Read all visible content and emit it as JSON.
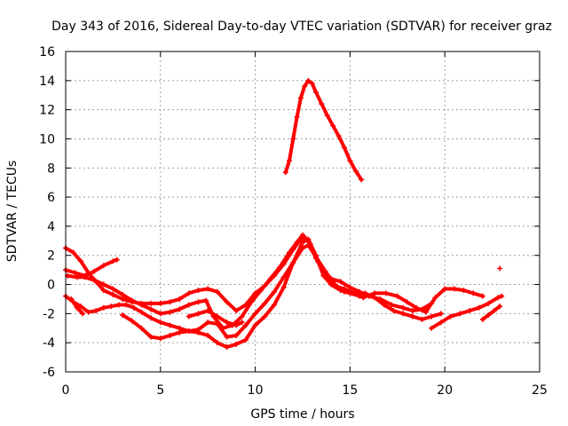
{
  "chart_data": {
    "type": "scatter",
    "title": "Day 343 of 2016, Sidereal Day-to-day VTEC variation (SDTVAR) for receiver graz",
    "xlabel": "GPS time / hours",
    "ylabel": "SDTVAR / TECUs",
    "xlim": [
      0,
      25
    ],
    "ylim": [
      -6,
      16
    ],
    "xticks": [
      0,
      5,
      10,
      15,
      20,
      25
    ],
    "yticks": [
      -6,
      -4,
      -2,
      0,
      2,
      4,
      6,
      8,
      10,
      12,
      14,
      16
    ],
    "grid": true,
    "marker_color": "#ff0000",
    "series": [
      {
        "name": "arc-peak-high",
        "points": [
          [
            11.6,
            7.7
          ],
          [
            11.8,
            8.5
          ],
          [
            12.0,
            10.0
          ],
          [
            12.2,
            11.5
          ],
          [
            12.4,
            12.8
          ],
          [
            12.6,
            13.6
          ],
          [
            12.8,
            14.0
          ],
          [
            13.0,
            13.8
          ],
          [
            13.2,
            13.2
          ],
          [
            13.5,
            12.4
          ],
          [
            13.8,
            11.6
          ],
          [
            14.1,
            10.9
          ],
          [
            14.4,
            10.2
          ],
          [
            14.7,
            9.4
          ],
          [
            15.0,
            8.5
          ],
          [
            15.3,
            7.8
          ],
          [
            15.6,
            7.2
          ]
        ]
      },
      {
        "name": "arc-a",
        "points": [
          [
            0.0,
            2.5
          ],
          [
            0.4,
            2.2
          ],
          [
            0.8,
            1.6
          ],
          [
            1.2,
            0.8
          ],
          [
            1.6,
            0.2
          ],
          [
            2.0,
            -0.4
          ],
          [
            2.5,
            -0.7
          ],
          [
            3.0,
            -1.0
          ],
          [
            3.5,
            -1.2
          ],
          [
            4.0,
            -1.3
          ],
          [
            4.5,
            -1.3
          ],
          [
            5.0,
            -1.3
          ],
          [
            5.5,
            -1.2
          ],
          [
            6.0,
            -1.0
          ],
          [
            6.5,
            -0.6
          ],
          [
            7.0,
            -0.4
          ],
          [
            7.5,
            -0.3
          ],
          [
            8.0,
            -0.5
          ],
          [
            8.5,
            -1.2
          ],
          [
            9.0,
            -1.8
          ],
          [
            9.5,
            -1.4
          ],
          [
            10.0,
            -0.6
          ],
          [
            10.5,
            -0.1
          ],
          [
            11.0,
            0.6
          ],
          [
            11.5,
            1.4
          ],
          [
            12.0,
            2.4
          ],
          [
            12.4,
            3.1
          ],
          [
            12.6,
            3.2
          ],
          [
            12.9,
            2.8
          ],
          [
            13.3,
            1.6
          ],
          [
            13.7,
            0.5
          ],
          [
            14.2,
            -0.1
          ],
          [
            14.7,
            -0.3
          ],
          [
            15.2,
            -0.6
          ],
          [
            15.7,
            -0.9
          ],
          [
            16.3,
            -0.6
          ],
          [
            16.9,
            -0.6
          ],
          [
            17.5,
            -0.8
          ],
          [
            18.0,
            -1.2
          ],
          [
            18.5,
            -1.6
          ],
          [
            19.0,
            -1.9
          ],
          [
            19.5,
            -0.9
          ],
          [
            20.0,
            -0.3
          ],
          [
            20.5,
            -0.3
          ],
          [
            21.0,
            -0.4
          ],
          [
            21.5,
            -0.6
          ],
          [
            22.0,
            -0.8
          ]
        ]
      },
      {
        "name": "arc-b",
        "points": [
          [
            0.1,
            0.6
          ],
          [
            0.6,
            0.5
          ],
          [
            1.0,
            0.5
          ],
          [
            1.5,
            0.3
          ],
          [
            2.0,
            0.0
          ],
          [
            2.5,
            -0.3
          ],
          [
            3.0,
            -0.7
          ],
          [
            3.5,
            -1.1
          ],
          [
            4.0,
            -1.4
          ],
          [
            4.5,
            -1.7
          ],
          [
            5.0,
            -2.0
          ],
          [
            5.5,
            -1.9
          ],
          [
            6.0,
            -1.7
          ],
          [
            6.5,
            -1.4
          ],
          [
            7.0,
            -1.2
          ],
          [
            7.4,
            -1.1
          ],
          [
            7.8,
            -2.2
          ],
          [
            8.3,
            -3.0
          ],
          [
            8.8,
            -2.8
          ],
          [
            9.3,
            -2.2
          ],
          [
            9.8,
            -1.2
          ],
          [
            10.3,
            -0.4
          ],
          [
            10.8,
            0.4
          ],
          [
            11.3,
            1.2
          ],
          [
            11.8,
            2.2
          ],
          [
            12.2,
            2.9
          ],
          [
            12.5,
            3.4
          ],
          [
            12.8,
            3.0
          ],
          [
            13.2,
            1.8
          ],
          [
            13.6,
            0.8
          ],
          [
            14.0,
            0.4
          ],
          [
            14.5,
            0.2
          ],
          [
            15.0,
            -0.2
          ],
          [
            15.5,
            -0.5
          ],
          [
            16.0,
            -0.8
          ],
          [
            16.6,
            -1.0
          ],
          [
            17.2,
            -1.4
          ],
          [
            17.8,
            -1.6
          ],
          [
            18.3,
            -1.8
          ],
          [
            18.8,
            -1.7
          ],
          [
            19.3,
            -1.3
          ]
        ]
      },
      {
        "name": "arc-c",
        "points": [
          [
            0.0,
            -0.8
          ],
          [
            0.4,
            -1.2
          ],
          [
            0.8,
            -1.5
          ],
          [
            1.2,
            -1.9
          ],
          [
            1.6,
            -1.8
          ],
          [
            2.0,
            -1.6
          ],
          [
            2.4,
            -1.5
          ],
          [
            2.8,
            -1.4
          ],
          [
            3.2,
            -1.4
          ],
          [
            3.6,
            -1.6
          ],
          [
            4.0,
            -1.9
          ],
          [
            4.5,
            -2.3
          ],
          [
            5.0,
            -2.6
          ],
          [
            5.5,
            -2.8
          ],
          [
            6.0,
            -3.0
          ],
          [
            6.5,
            -3.2
          ],
          [
            7.0,
            -3.1
          ],
          [
            7.5,
            -2.6
          ],
          [
            8.0,
            -2.7
          ],
          [
            8.5,
            -3.6
          ],
          [
            9.0,
            -3.5
          ],
          [
            9.5,
            -2.8
          ],
          [
            10.0,
            -2.0
          ],
          [
            10.5,
            -1.3
          ],
          [
            11.0,
            -0.5
          ],
          [
            11.5,
            0.5
          ],
          [
            12.0,
            1.5
          ],
          [
            12.5,
            2.5
          ],
          [
            12.8,
            2.7
          ],
          [
            13.2,
            1.9
          ],
          [
            13.7,
            0.9
          ],
          [
            14.2,
            0.0
          ],
          [
            14.7,
            -0.5
          ],
          [
            15.2,
            -0.6
          ],
          [
            15.8,
            -0.6
          ],
          [
            16.3,
            -0.9
          ],
          [
            16.8,
            -1.4
          ],
          [
            17.3,
            -1.8
          ],
          [
            17.8,
            -2.0
          ],
          [
            18.3,
            -2.2
          ],
          [
            18.8,
            -2.4
          ],
          [
            19.3,
            -2.2
          ],
          [
            19.8,
            -2.0
          ]
        ]
      },
      {
        "name": "arc-d",
        "points": [
          [
            3.0,
            -2.1
          ],
          [
            3.5,
            -2.5
          ],
          [
            4.0,
            -3.0
          ],
          [
            4.5,
            -3.6
          ],
          [
            5.0,
            -3.7
          ],
          [
            5.5,
            -3.5
          ],
          [
            6.0,
            -3.3
          ],
          [
            6.5,
            -3.2
          ],
          [
            7.0,
            -3.3
          ],
          [
            7.5,
            -3.5
          ],
          [
            8.0,
            -4.0
          ],
          [
            8.5,
            -4.3
          ],
          [
            9.0,
            -4.1
          ],
          [
            9.5,
            -3.8
          ],
          [
            10.0,
            -2.8
          ],
          [
            10.5,
            -2.2
          ],
          [
            11.0,
            -1.4
          ],
          [
            11.5,
            -0.2
          ],
          [
            12.0,
            1.5
          ],
          [
            12.5,
            2.9
          ],
          [
            12.8,
            3.1
          ],
          [
            13.2,
            2.0
          ],
          [
            13.6,
            0.6
          ],
          [
            14.0,
            0.0
          ],
          [
            14.5,
            -0.4
          ],
          [
            15.0,
            -0.6
          ],
          [
            15.5,
            -0.8
          ]
        ]
      },
      {
        "name": "arc-e",
        "points": [
          [
            0.0,
            1.0
          ],
          [
            0.5,
            0.8
          ],
          [
            1.0,
            0.6
          ],
          [
            1.5,
            0.9
          ],
          [
            2.0,
            1.3
          ],
          [
            2.5,
            1.6
          ],
          [
            2.7,
            1.7
          ]
        ]
      },
      {
        "name": "arc-f",
        "points": [
          [
            6.5,
            -2.2
          ],
          [
            7.0,
            -2.0
          ],
          [
            7.5,
            -1.8
          ],
          [
            8.0,
            -2.2
          ],
          [
            8.5,
            -2.6
          ],
          [
            9.0,
            -2.8
          ],
          [
            9.3,
            -2.6
          ]
        ]
      },
      {
        "name": "arc-g",
        "points": [
          [
            19.3,
            -3.0
          ],
          [
            19.8,
            -2.6
          ],
          [
            20.3,
            -2.2
          ],
          [
            20.8,
            -2.0
          ],
          [
            21.3,
            -1.8
          ],
          [
            21.8,
            -1.6
          ],
          [
            22.3,
            -1.3
          ],
          [
            22.8,
            -0.9
          ],
          [
            23.0,
            -0.8
          ]
        ]
      },
      {
        "name": "arc-h",
        "points": [
          [
            22.0,
            -2.4
          ],
          [
            22.3,
            -2.1
          ],
          [
            22.6,
            -1.8
          ],
          [
            22.9,
            -1.5
          ]
        ]
      },
      {
        "name": "arc-i",
        "points": [
          [
            0.3,
            -1.0
          ],
          [
            0.6,
            -1.6
          ],
          [
            0.9,
            -2.0
          ]
        ]
      },
      {
        "name": "isolated",
        "points": [
          [
            22.9,
            1.1
          ]
        ]
      }
    ]
  }
}
